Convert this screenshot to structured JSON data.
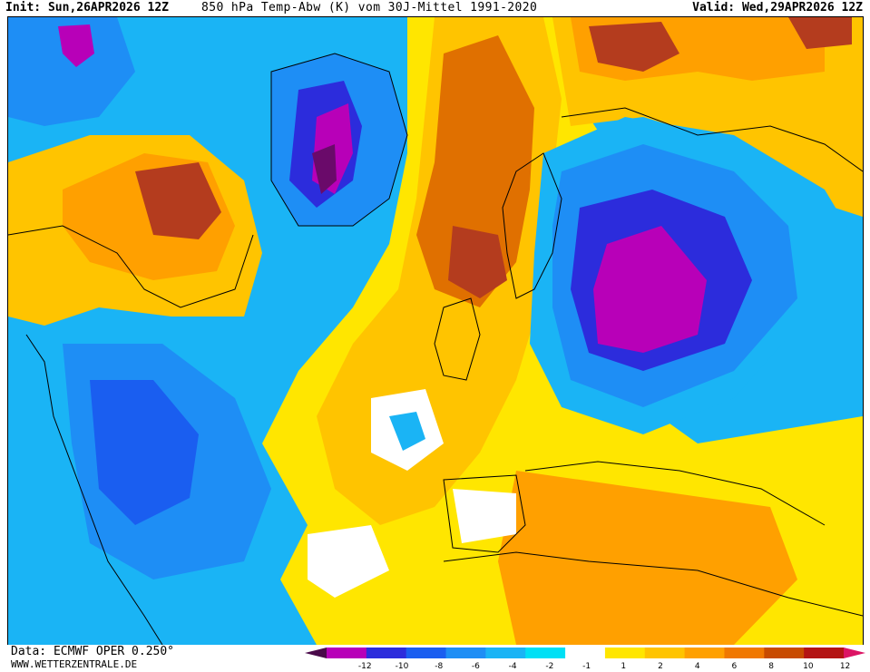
{
  "header": {
    "init": "Init: Sun,26APR2026 12Z",
    "description": "850 hPa Temp-Abw (K) vom 30J-Mittel 1991-2020",
    "valid": "Valid: Wed,29APR2026 12Z"
  },
  "footer": {
    "data_source": "Data: ECMWF OPER 0.250°",
    "website": "WWW.WETTERZENTRALE.DE"
  },
  "legend": {
    "ticks": [
      "-12",
      "-10",
      "-8",
      "-6",
      "-4",
      "-2",
      "-1",
      "1",
      "2",
      "4",
      "6",
      "8",
      "10",
      "12"
    ],
    "colors": [
      "#4a0a4a",
      "#b800b8",
      "#2c2cdc",
      "#1a5ef0",
      "#1e8ef5",
      "#1ab4f5",
      "#00e0f5",
      "#ffffff",
      "#ffe600",
      "#ffc400",
      "#ffa000",
      "#f07800",
      "#c84b00",
      "#b41414",
      "#dc1464"
    ]
  },
  "map": {
    "palette": {
      "ocean_cold": "#1ab4f5",
      "cold_mid": "#1e8ef5",
      "cold_strong": "#1a5ef0",
      "cold_deep": "#2c2cdc",
      "cold_extreme": "#b800b8",
      "cold_core": "#6a0a6a",
      "neutral": "#ffffff",
      "warm_light": "#ffe600",
      "warm": "#ffc400",
      "warm_mid": "#ffa000",
      "warm_strong": "#e07000",
      "warm_hot": "#b43c1e",
      "warm_extreme": "#a02828"
    }
  }
}
